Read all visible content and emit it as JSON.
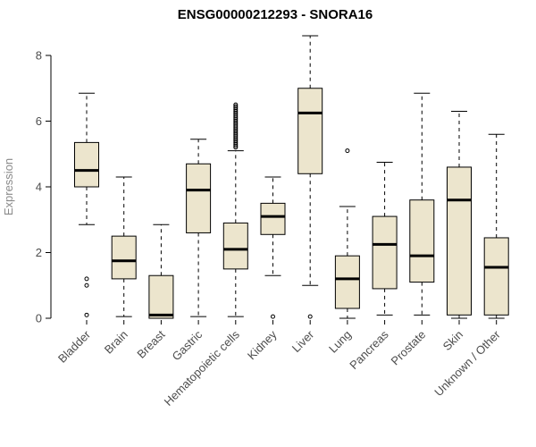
{
  "chart_data": {
    "type": "boxplot",
    "title": "ENSG00000212293 - SNORA16",
    "xlabel": "",
    "ylabel": "Expression",
    "ylim": [
      0,
      8.8
    ],
    "yticks": [
      0,
      2,
      4,
      6,
      8
    ],
    "grid": false,
    "legend": "none",
    "box_fill": "#ECE5CD",
    "box_stroke": "#000000",
    "categories": [
      "Bladder",
      "Brain",
      "Breast",
      "Gastric",
      "Hematopoietic cells",
      "Kidney",
      "Liver",
      "Lung",
      "Pancreas",
      "Prostate",
      "Skin",
      "Unknown / Other"
    ],
    "series": [
      {
        "category": "Bladder",
        "whisker_low": 2.85,
        "q1": 4.0,
        "median": 4.5,
        "q3": 5.35,
        "whisker_high": 6.85,
        "outliers": [
          1.2,
          1.0,
          0.1
        ]
      },
      {
        "category": "Brain",
        "whisker_low": 0.05,
        "q1": 1.2,
        "median": 1.75,
        "q3": 2.5,
        "whisker_high": 4.3,
        "outliers": []
      },
      {
        "category": "Breast",
        "whisker_low": 0,
        "q1": 0,
        "median": 0.1,
        "q3": 1.3,
        "whisker_high": 2.85,
        "outliers": []
      },
      {
        "category": "Gastric",
        "whisker_low": 0.05,
        "q1": 2.6,
        "median": 3.9,
        "q3": 4.7,
        "whisker_high": 5.45,
        "outliers": []
      },
      {
        "category": "Hematopoietic cells",
        "whisker_low": 0.05,
        "q1": 1.5,
        "median": 2.1,
        "q3": 2.9,
        "whisker_high": 5.1,
        "outliers": [
          5.2,
          5.25,
          5.3,
          5.35,
          5.4,
          5.45,
          5.5,
          5.55,
          5.6,
          5.65,
          5.7,
          5.75,
          5.8,
          5.85,
          5.9,
          5.95,
          6.0,
          6.05,
          6.1,
          6.15,
          6.2,
          6.25,
          6.3,
          6.35,
          6.4,
          6.45,
          6.5
        ]
      },
      {
        "category": "Kidney",
        "whisker_low": 1.3,
        "q1": 2.55,
        "median": 3.1,
        "q3": 3.5,
        "whisker_high": 4.3,
        "outliers": [
          0.05
        ]
      },
      {
        "category": "Liver",
        "whisker_low": 1.0,
        "q1": 4.4,
        "median": 6.25,
        "q3": 7.0,
        "whisker_high": 8.6,
        "outliers": [
          0.05
        ]
      },
      {
        "category": "Lung",
        "whisker_low": 0,
        "q1": 0.3,
        "median": 1.2,
        "q3": 1.9,
        "whisker_high": 3.4,
        "outliers": [
          5.1
        ]
      },
      {
        "category": "Pancreas",
        "whisker_low": 0.1,
        "q1": 0.9,
        "median": 2.25,
        "q3": 3.1,
        "whisker_high": 4.75,
        "outliers": []
      },
      {
        "category": "Prostate",
        "whisker_low": 0.1,
        "q1": 1.1,
        "median": 1.9,
        "q3": 3.6,
        "whisker_high": 6.85,
        "outliers": []
      },
      {
        "category": "Skin",
        "whisker_low": 0,
        "q1": 0.1,
        "median": 3.6,
        "q3": 4.6,
        "whisker_high": 6.3,
        "outliers": []
      },
      {
        "category": "Unknown / Other",
        "whisker_low": 0,
        "q1": 0.1,
        "median": 1.55,
        "q3": 2.45,
        "whisker_high": 5.6,
        "outliers": []
      }
    ]
  }
}
